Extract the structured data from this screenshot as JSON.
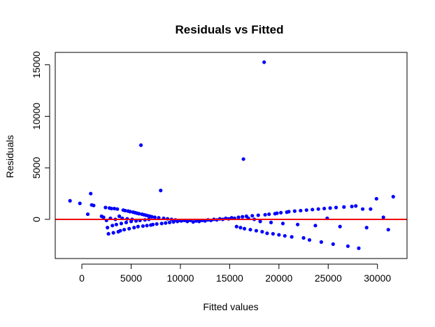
{
  "chart_data": {
    "type": "scatter",
    "title": "Residuals vs Fitted",
    "xlabel": "Fitted values",
    "ylabel": "Residuals",
    "xlim": [
      -2700,
      33000
    ],
    "ylim": [
      -3800,
      16200
    ],
    "x_ticks": [
      0,
      5000,
      10000,
      15000,
      20000,
      25000,
      30000
    ],
    "x_tick_labels": [
      "0",
      "5000",
      "10000",
      "15000",
      "20000",
      "25000",
      "30000"
    ],
    "y_ticks": [
      0,
      5000,
      10000,
      15000
    ],
    "y_tick_labels": [
      "0",
      "5000",
      "10000",
      "15000"
    ],
    "grid": false,
    "reference_line": {
      "y": 0,
      "color": "#ee0000"
    },
    "point_color": "#0000ff",
    "points": [
      [
        -1200,
        1800
      ],
      [
        -200,
        1550
      ],
      [
        600,
        500
      ],
      [
        900,
        2500
      ],
      [
        1000,
        1400
      ],
      [
        1200,
        1350
      ],
      [
        2000,
        300
      ],
      [
        2200,
        200
      ],
      [
        2400,
        1150
      ],
      [
        2500,
        -100
      ],
      [
        2600,
        -800
      ],
      [
        2700,
        -1400
      ],
      [
        2800,
        1100
      ],
      [
        2900,
        100
      ],
      [
        3000,
        1050
      ],
      [
        3100,
        -600
      ],
      [
        3200,
        -1300
      ],
      [
        3300,
        1050
      ],
      [
        3400,
        0
      ],
      [
        3500,
        -500
      ],
      [
        3600,
        1000
      ],
      [
        3700,
        -1200
      ],
      [
        3800,
        300
      ],
      [
        3900,
        -1100
      ],
      [
        4000,
        -400
      ],
      [
        4100,
        100
      ],
      [
        4200,
        900
      ],
      [
        4300,
        -1000
      ],
      [
        4400,
        850
      ],
      [
        4500,
        -300
      ],
      [
        4600,
        50
      ],
      [
        4700,
        800
      ],
      [
        4800,
        -900
      ],
      [
        4900,
        750
      ],
      [
        5000,
        -200
      ],
      [
        5100,
        0
      ],
      [
        5200,
        700
      ],
      [
        5300,
        -800
      ],
      [
        5400,
        650
      ],
      [
        5500,
        -150
      ],
      [
        5600,
        600
      ],
      [
        5700,
        -700
      ],
      [
        5800,
        550
      ],
      [
        5900,
        -100
      ],
      [
        6000,
        7200
      ],
      [
        6100,
        500
      ],
      [
        6200,
        -650
      ],
      [
        6300,
        450
      ],
      [
        6400,
        -50
      ],
      [
        6500,
        400
      ],
      [
        6600,
        -600
      ],
      [
        6700,
        350
      ],
      [
        6800,
        0
      ],
      [
        6900,
        300
      ],
      [
        7000,
        -550
      ],
      [
        7100,
        250
      ],
      [
        7200,
        -500
      ],
      [
        7400,
        200
      ],
      [
        7600,
        -450
      ],
      [
        7800,
        150
      ],
      [
        8000,
        2800
      ],
      [
        8100,
        -400
      ],
      [
        8300,
        100
      ],
      [
        8500,
        -350
      ],
      [
        8700,
        50
      ],
      [
        8900,
        -300
      ],
      [
        9100,
        0
      ],
      [
        9300,
        -250
      ],
      [
        9500,
        -50
      ],
      [
        9700,
        -200
      ],
      [
        9900,
        -100
      ],
      [
        10100,
        -150
      ],
      [
        10400,
        -100
      ],
      [
        10700,
        -200
      ],
      [
        11000,
        -100
      ],
      [
        11300,
        -250
      ],
      [
        11600,
        -150
      ],
      [
        11900,
        -200
      ],
      [
        12200,
        -100
      ],
      [
        12500,
        -150
      ],
      [
        12800,
        -50
      ],
      [
        13100,
        -100
      ],
      [
        13400,
        0
      ],
      [
        13700,
        -50
      ],
      [
        14000,
        50
      ],
      [
        14300,
        0
      ],
      [
        14600,
        100
      ],
      [
        14900,
        50
      ],
      [
        15200,
        150
      ],
      [
        15500,
        100
      ],
      [
        15700,
        -700
      ],
      [
        15900,
        200
      ],
      [
        16100,
        -800
      ],
      [
        16300,
        250
      ],
      [
        16400,
        5850
      ],
      [
        16500,
        -900
      ],
      [
        16700,
        300
      ],
      [
        16900,
        100
      ],
      [
        17100,
        -1000
      ],
      [
        17300,
        350
      ],
      [
        17500,
        0
      ],
      [
        17700,
        -1100
      ],
      [
        17900,
        400
      ],
      [
        18100,
        -200
      ],
      [
        18300,
        -1200
      ],
      [
        18500,
        15250
      ],
      [
        18600,
        450
      ],
      [
        18800,
        -1350
      ],
      [
        19000,
        500
      ],
      [
        19200,
        -300
      ],
      [
        19400,
        -1400
      ],
      [
        19600,
        550
      ],
      [
        19800,
        600
      ],
      [
        20000,
        -1500
      ],
      [
        20200,
        650
      ],
      [
        20400,
        -400
      ],
      [
        20600,
        -1600
      ],
      [
        20800,
        700
      ],
      [
        21000,
        750
      ],
      [
        21300,
        -1700
      ],
      [
        21600,
        800
      ],
      [
        21900,
        -500
      ],
      [
        22200,
        850
      ],
      [
        22500,
        -1800
      ],
      [
        22800,
        900
      ],
      [
        23100,
        -2000
      ],
      [
        23400,
        950
      ],
      [
        23700,
        -600
      ],
      [
        24000,
        1000
      ],
      [
        24300,
        -2200
      ],
      [
        24600,
        1050
      ],
      [
        24900,
        100
      ],
      [
        25200,
        1100
      ],
      [
        25500,
        -2400
      ],
      [
        25800,
        1150
      ],
      [
        26200,
        -700
      ],
      [
        26600,
        1200
      ],
      [
        27000,
        -2600
      ],
      [
        27400,
        1250
      ],
      [
        27800,
        1300
      ],
      [
        28100,
        -2800
      ],
      [
        28500,
        1000
      ],
      [
        28900,
        -800
      ],
      [
        29300,
        1000
      ],
      [
        29900,
        2000
      ],
      [
        30600,
        200
      ],
      [
        31100,
        -1000
      ],
      [
        31600,
        2200
      ]
    ]
  }
}
